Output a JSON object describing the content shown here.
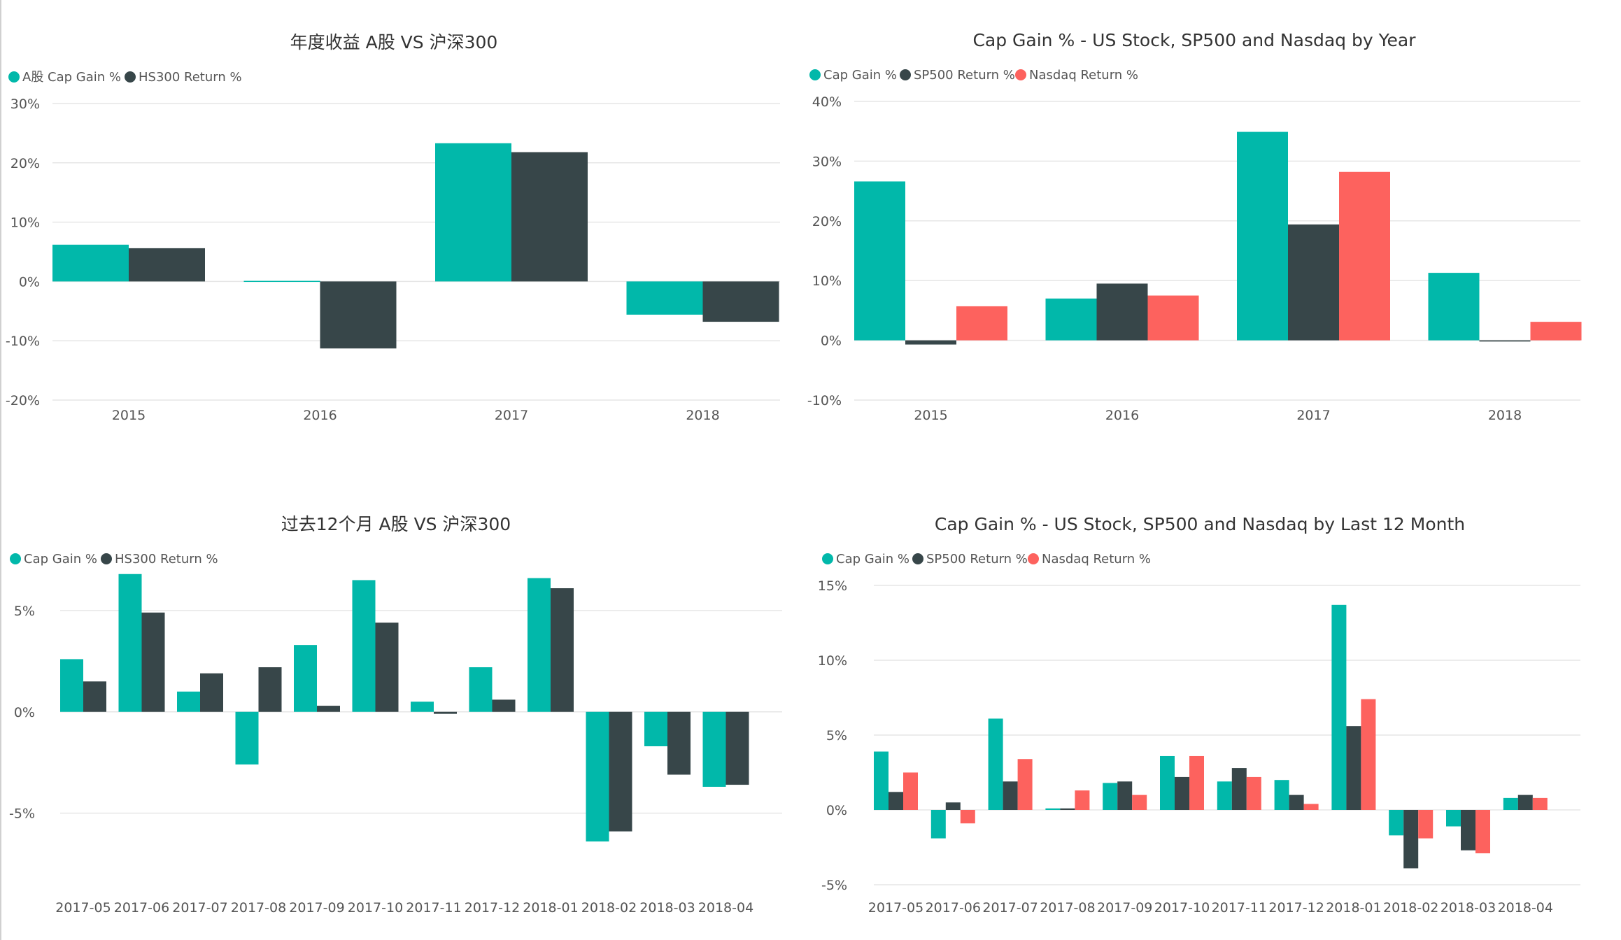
{
  "colors": {
    "teal": "#01B8AA",
    "dark": "#374649",
    "red": "#FD625E"
  },
  "chart_data": [
    {
      "type": "bar",
      "title": "年度收益 A股 VS 沪深300",
      "categories": [
        "2015",
        "2016",
        "2017",
        "2018"
      ],
      "series": [
        {
          "name": "A股 Cap Gain %",
          "color": "#01B8AA",
          "values": [
            6.2,
            0.1,
            23.3,
            -5.6
          ]
        },
        {
          "name": "HS300 Return %",
          "color": "#374649",
          "values": [
            5.6,
            -11.3,
            21.8,
            -6.8
          ]
        }
      ],
      "ylim": [
        -20,
        30
      ],
      "yticks": [
        -20,
        -10,
        0,
        10,
        20,
        30
      ],
      "ytick_labels": [
        "-20%",
        "-10%",
        "0%",
        "10%",
        "20%",
        "30%"
      ],
      "xlabel": "",
      "ylabel": "",
      "legend": "top-left"
    },
    {
      "type": "bar",
      "title": "Cap Gain % - US Stock, SP500 and Nasdaq by Year",
      "categories": [
        "2015",
        "2016",
        "2017",
        "2018"
      ],
      "series": [
        {
          "name": "Cap Gain %",
          "color": "#01B8AA",
          "values": [
            26.6,
            7.0,
            34.9,
            11.3
          ]
        },
        {
          "name": "SP500 Return %",
          "color": "#374649",
          "values": [
            -0.7,
            9.5,
            19.4,
            -0.2
          ]
        },
        {
          "name": "Nasdaq Return %",
          "color": "#FD625E",
          "values": [
            5.7,
            7.5,
            28.2,
            3.1
          ]
        }
      ],
      "ylim": [
        -10,
        40
      ],
      "yticks": [
        -10,
        0,
        10,
        20,
        30,
        40
      ],
      "ytick_labels": [
        "-10%",
        "0%",
        "10%",
        "20%",
        "30%",
        "40%"
      ],
      "xlabel": "",
      "ylabel": "",
      "legend": "top-left"
    },
    {
      "type": "bar",
      "title": "过去12个月 A股 VS 沪深300",
      "categories": [
        "2017-05",
        "2017-06",
        "2017-07",
        "2017-08",
        "2017-09",
        "2017-10",
        "2017-11",
        "2017-12",
        "2018-01",
        "2018-02",
        "2018-03",
        "2018-04"
      ],
      "series": [
        {
          "name": "Cap Gain %",
          "color": "#01B8AA",
          "values": [
            2.6,
            6.8,
            1.0,
            -2.6,
            3.3,
            6.5,
            0.5,
            2.2,
            6.6,
            -6.4,
            -1.7,
            -3.7
          ]
        },
        {
          "name": "HS300 Return %",
          "color": "#374649",
          "values": [
            1.5,
            4.9,
            1.9,
            2.2,
            0.3,
            4.4,
            -0.1,
            0.6,
            6.1,
            -5.9,
            -3.1,
            -3.6
          ]
        }
      ],
      "ylim": [
        -8.5,
        8
      ],
      "yticks": [
        -5,
        0,
        5
      ],
      "ytick_labels": [
        "-5%",
        "0%",
        "5%"
      ],
      "xlabel": "",
      "ylabel": "",
      "legend": "top-left"
    },
    {
      "type": "bar",
      "title": "Cap Gain % - US Stock, SP500 and Nasdaq by Last 12 Month",
      "categories": [
        "2017-05",
        "2017-06",
        "2017-07",
        "2017-08",
        "2017-09",
        "2017-10",
        "2017-11",
        "2017-12",
        "2018-01",
        "2018-02",
        "2018-03",
        "2018-04"
      ],
      "series": [
        {
          "name": "Cap Gain %",
          "color": "#01B8AA",
          "values": [
            3.9,
            -1.9,
            6.1,
            0.1,
            1.8,
            3.6,
            1.9,
            2.0,
            13.7,
            -1.7,
            -1.1,
            0.8
          ]
        },
        {
          "name": "SP500 Return %",
          "color": "#374649",
          "values": [
            1.2,
            0.5,
            1.9,
            0.1,
            1.9,
            2.2,
            2.8,
            1.0,
            5.6,
            -3.9,
            -2.7,
            1.0
          ]
        },
        {
          "name": "Nasdaq Return %",
          "color": "#FD625E",
          "values": [
            2.5,
            -0.9,
            3.4,
            1.3,
            1.0,
            3.6,
            2.2,
            0.4,
            7.4,
            -1.9,
            -2.9,
            0.8
          ]
        }
      ],
      "ylim": [
        -5,
        15
      ],
      "yticks": [
        -5,
        0,
        5,
        10,
        15
      ],
      "ytick_labels": [
        "-5%",
        "0%",
        "5%",
        "10%",
        "15%"
      ],
      "xlabel": "",
      "ylabel": "",
      "legend": "top-left"
    }
  ]
}
